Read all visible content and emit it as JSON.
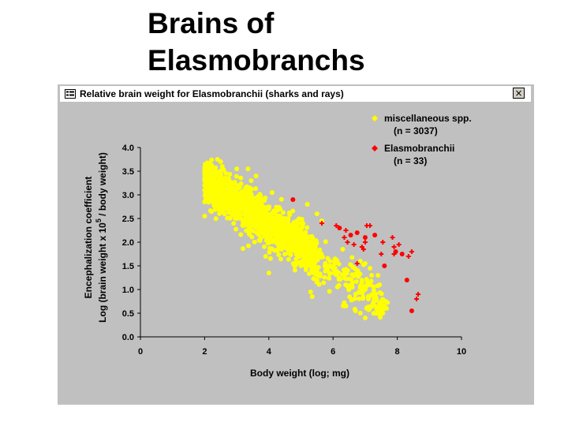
{
  "slide": {
    "title_line1": "Brains of",
    "title_line2": "Elasmobranchs"
  },
  "window": {
    "title": "Relative brain weight for Elasmobranchii (sharks and rays)",
    "close_symbol": "×"
  },
  "chart_data": {
    "type": "scatter",
    "xlabel": "Body weight (log; mg)",
    "ylabel_line1": "Encephalization coefficient",
    "ylabel_line2_parts": [
      "Log (brain weight x 10",
      "5",
      " / body weight)"
    ],
    "xlim": [
      0,
      10
    ],
    "ylim": [
      0,
      4
    ],
    "x_ticks": [
      "0",
      "2",
      "4",
      "6",
      "8",
      "10"
    ],
    "y_ticks": [
      "0.0",
      "0.5",
      "1.0",
      "1.5",
      "2.0",
      "2.5",
      "3.0",
      "3.5",
      "4.0"
    ],
    "legend_placement": "top-right",
    "background_color": "#c0c0c0",
    "series": [
      {
        "name": "miscellaneous spp.",
        "count_label": "(n = 3037)",
        "color": "#ffff00",
        "trend": {
          "slope": -0.47,
          "intercept": 4.25,
          "spread": 0.22,
          "x_range": [
            2.0,
            7.7
          ]
        },
        "points": [
          [
            2.0,
            3.5
          ],
          [
            2.0,
            3.45
          ],
          [
            2.0,
            3.35
          ],
          [
            2.0,
            3.3
          ],
          [
            2.0,
            3.2
          ],
          [
            2.0,
            3.1
          ],
          [
            2.0,
            2.85
          ],
          [
            2.0,
            2.55
          ],
          [
            2.4,
            3.75
          ],
          [
            2.5,
            3.7
          ],
          [
            2.55,
            3.6
          ],
          [
            3.0,
            3.55
          ],
          [
            3.35,
            3.55
          ],
          [
            3.45,
            3.3
          ],
          [
            3.6,
            3.4
          ],
          [
            3.4,
            3.15
          ],
          [
            4.1,
            3.05
          ],
          [
            4.35,
            2.7
          ],
          [
            4.6,
            2.5
          ],
          [
            4.8,
            2.3
          ],
          [
            5.0,
            2.4
          ],
          [
            5.2,
            2.8
          ],
          [
            5.5,
            2.6
          ],
          [
            5.65,
            2.45
          ],
          [
            3.9,
            1.7
          ],
          [
            4.0,
            1.35
          ],
          [
            4.8,
            1.5
          ],
          [
            5.05,
            1.9
          ],
          [
            5.3,
            0.95
          ],
          [
            5.35,
            0.85
          ],
          [
            5.45,
            1.75
          ],
          [
            5.5,
            1.2
          ],
          [
            5.9,
            1.6
          ],
          [
            6.3,
            1.85
          ],
          [
            6.4,
            0.65
          ],
          [
            6.6,
            1.05
          ],
          [
            6.7,
            0.9
          ],
          [
            6.85,
            1.6
          ],
          [
            7.0,
            1.55
          ],
          [
            7.1,
            0.8
          ],
          [
            7.15,
            1.45
          ],
          [
            7.2,
            1.3
          ],
          [
            6.9,
            1.15
          ],
          [
            6.7,
            0.55
          ],
          [
            6.85,
            0.5
          ],
          [
            7.0,
            0.4
          ],
          [
            7.5,
            0.7
          ],
          [
            7.6,
            0.65
          ],
          [
            7.4,
            1.3
          ],
          [
            7.45,
            1.1
          ],
          [
            7.55,
            0.6
          ]
        ]
      },
      {
        "name": "Elasmobranchii",
        "count_label": "(n = 33)",
        "color": "#ff0000",
        "points": [
          [
            4.75,
            2.9
          ],
          [
            5.65,
            2.4
          ],
          [
            6.1,
            2.35
          ],
          [
            6.2,
            2.3
          ],
          [
            6.4,
            2.25
          ],
          [
            6.45,
            2.0
          ],
          [
            6.55,
            2.15
          ],
          [
            6.35,
            2.1
          ],
          [
            6.65,
            1.95
          ],
          [
            6.75,
            2.2
          ],
          [
            6.75,
            1.55
          ],
          [
            6.9,
            1.9
          ],
          [
            7.0,
            2.1
          ],
          [
            7.05,
            2.35
          ],
          [
            7.15,
            2.35
          ],
          [
            7.3,
            2.15
          ],
          [
            7.55,
            2.0
          ],
          [
            7.5,
            1.75
          ],
          [
            7.6,
            1.5
          ],
          [
            7.85,
            2.1
          ],
          [
            7.9,
            1.9
          ],
          [
            7.95,
            1.8
          ],
          [
            7.9,
            1.75
          ],
          [
            8.05,
            1.95
          ],
          [
            8.15,
            1.75
          ],
          [
            8.35,
            1.7
          ],
          [
            8.45,
            1.8
          ],
          [
            8.3,
            1.2
          ],
          [
            8.6,
            0.8
          ],
          [
            8.65,
            0.9
          ],
          [
            8.45,
            0.55
          ],
          [
            7.0,
            2.0
          ],
          [
            6.95,
            1.85
          ]
        ]
      }
    ]
  }
}
